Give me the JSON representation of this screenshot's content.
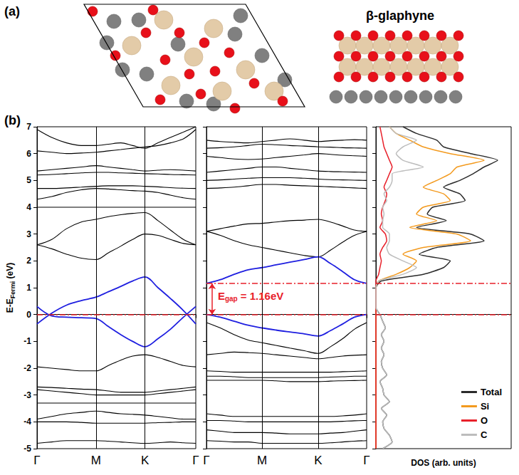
{
  "panel_labels": [
    "(a)",
    "(b)"
  ],
  "structure": {
    "title": "β-glaphyne"
  },
  "chart_data": [
    {
      "type": "line",
      "x": [
        0,
        0.25,
        0.5,
        0.75,
        1,
        1.21,
        1.42,
        1.62,
        1.83,
        2.05,
        2.26,
        2.48,
        2.69
      ],
      "xlim": [
        0,
        2.69
      ],
      "xticks": [
        {
          "value": 0,
          "label": "Γ"
        },
        {
          "value": 1,
          "label": "M"
        },
        {
          "value": 1.83,
          "label": "K"
        },
        {
          "value": 2.69,
          "label": "Γ"
        }
      ],
      "ylim": [
        -5,
        7
      ],
      "yticks": [
        -5,
        -4,
        -3,
        -2,
        -1,
        0,
        1,
        2,
        3,
        4,
        5,
        6,
        7
      ],
      "ylabel": {
        "main": "E-E",
        "sub": "Fermi",
        "rest": " (eV)"
      },
      "grid": true,
      "reference_lines": {
        "y": [
          0
        ],
        "color": "#e8202a",
        "line_style": "dashdot"
      },
      "series": [
        {
          "color": "#000000",
          "values": [
            2.6,
            2.8,
            3.2,
            3.45,
            3.55,
            3.65,
            3.72,
            3.77,
            3.8,
            3.5,
            3.15,
            2.8,
            2.6
          ]
        },
        {
          "color": "#000000",
          "values": [
            2.6,
            2.45,
            2.25,
            2.1,
            2.05,
            2.3,
            2.55,
            2.8,
            3.0,
            2.95,
            2.8,
            2.65,
            2.6
          ]
        },
        {
          "color": "#000000",
          "values": [
            4.0,
            4.0,
            4.0,
            4.0,
            4.0,
            4.0,
            4.0,
            4.0,
            4.0,
            4.0,
            4.0,
            4.0,
            4.0
          ]
        },
        {
          "color": "#000000",
          "values": [
            4.3,
            4.4,
            4.55,
            4.65,
            4.7,
            4.68,
            4.65,
            4.62,
            4.6,
            4.55,
            4.45,
            4.35,
            4.3
          ]
        },
        {
          "color": "#000000",
          "values": [
            4.7,
            4.7,
            4.72,
            4.75,
            4.78,
            4.8,
            4.8,
            4.8,
            4.78,
            4.76,
            4.73,
            4.71,
            4.7
          ]
        },
        {
          "color": "#000000",
          "values": [
            5.2,
            5.22,
            5.25,
            5.28,
            5.3,
            5.3,
            5.28,
            5.27,
            5.25,
            5.24,
            5.22,
            5.21,
            5.2
          ]
        },
        {
          "color": "#000000",
          "values": [
            5.35,
            5.4,
            5.45,
            5.5,
            5.55,
            5.5,
            5.45,
            5.4,
            5.35,
            5.38,
            5.4,
            5.38,
            5.35
          ]
        },
        {
          "color": "#000000",
          "values": [
            6.1,
            6.05,
            6.0,
            6.02,
            6.05,
            6.1,
            6.15,
            6.2,
            6.25,
            6.3,
            6.4,
            6.55,
            6.9
          ]
        },
        {
          "color": "#000000",
          "values": [
            6.9,
            6.6,
            6.4,
            6.3,
            6.3,
            6.35,
            6.4,
            6.3,
            6.2,
            6.4,
            6.6,
            6.8,
            7.0
          ]
        },
        {
          "color": "#000000",
          "values": [
            -1.95,
            -2.0,
            -2.05,
            -2.1,
            -2.1,
            -1.9,
            -1.7,
            -1.55,
            -1.5,
            -1.6,
            -1.75,
            -1.9,
            -1.95
          ]
        },
        {
          "color": "#000000",
          "values": [
            -2.7,
            -2.72,
            -2.75,
            -2.78,
            -2.8,
            -2.85,
            -2.9,
            -2.9,
            -2.9,
            -2.85,
            -2.8,
            -2.75,
            -2.7
          ]
        },
        {
          "color": "#000000",
          "values": [
            -2.8,
            -2.85,
            -2.9,
            -2.95,
            -3.0,
            -3.0,
            -3.0,
            -3.0,
            -3.0,
            -2.95,
            -2.9,
            -2.85,
            -2.8
          ]
        },
        {
          "color": "#000000",
          "values": [
            -3.3,
            -3.3,
            -3.3,
            -3.3,
            -3.3,
            -3.3,
            -3.3,
            -3.3,
            -3.3,
            -3.3,
            -3.3,
            -3.3,
            -3.3
          ]
        },
        {
          "color": "#000000",
          "values": [
            -3.9,
            -3.8,
            -3.7,
            -3.65,
            -3.6,
            -3.65,
            -3.7,
            -3.72,
            -3.75,
            -3.8,
            -3.85,
            -3.9,
            -3.9
          ]
        },
        {
          "color": "#000000",
          "values": [
            -4.0,
            -4.0,
            -4.0,
            -4.02,
            -4.05,
            -4.05,
            -4.05,
            -4.05,
            -4.05,
            -4.03,
            -4.02,
            -4.0,
            -4.0
          ]
        },
        {
          "color": "#000000",
          "values": [
            -4.8,
            -4.75,
            -4.7,
            -4.7,
            -4.7,
            -4.72,
            -4.75,
            -4.78,
            -4.8,
            -4.78,
            -4.75,
            -4.78,
            -4.8
          ]
        },
        {
          "color": "#1f1fe0",
          "values": [
            -0.35,
            0.05,
            0.35,
            0.52,
            0.65,
            0.85,
            1.05,
            1.25,
            1.4,
            1.0,
            0.6,
            0.15,
            -0.35
          ]
        },
        {
          "color": "#1f1fe0",
          "values": [
            0.3,
            -0.05,
            -0.1,
            -0.12,
            -0.15,
            -0.45,
            -0.75,
            -1.0,
            -1.2,
            -0.9,
            -0.55,
            -0.1,
            0.3
          ]
        }
      ]
    },
    {
      "type": "line",
      "x": [
        0,
        0.25,
        0.5,
        0.75,
        1,
        1.25,
        1.5,
        1.76,
        2.01,
        2.23,
        2.45,
        2.66,
        2.88
      ],
      "xlim": [
        0,
        2.88
      ],
      "xticks": [
        {
          "value": 0,
          "label": "Γ"
        },
        {
          "value": 1,
          "label": "M"
        },
        {
          "value": 2.01,
          "label": "K"
        },
        {
          "value": 2.88,
          "label": "Γ"
        }
      ],
      "ylim": [
        -5,
        7
      ],
      "yticks": [
        -5,
        -4,
        -3,
        -2,
        -1,
        0,
        1,
        2,
        3,
        4,
        5,
        6,
        7
      ],
      "tick_labels": "x",
      "grid": true,
      "reference_lines": {
        "y": [
          0,
          1.16
        ],
        "color": "#e8202a",
        "line_style": "dashdot"
      },
      "annotation": {
        "main": "E",
        "sub": "gap",
        "rest": " = 1.16eV",
        "y_from": 0,
        "y_to": 1.16,
        "color": "#e8202a"
      },
      "series": [
        {
          "color": "#000000",
          "values": [
            3.1,
            3.2,
            3.3,
            3.38,
            3.4,
            3.45,
            3.5,
            3.52,
            3.55,
            3.45,
            3.3,
            3.15,
            3.1
          ]
        },
        {
          "color": "#000000",
          "values": [
            3.1,
            2.95,
            2.75,
            2.6,
            2.5,
            2.4,
            2.3,
            2.2,
            2.15,
            2.4,
            2.7,
            2.95,
            3.1
          ]
        },
        {
          "color": "#000000",
          "values": [
            4.7,
            4.72,
            4.75,
            4.8,
            4.85,
            4.85,
            4.82,
            4.8,
            4.78,
            4.76,
            4.74,
            4.72,
            4.7
          ]
        },
        {
          "color": "#000000",
          "values": [
            5.0,
            5.02,
            5.05,
            5.08,
            5.1,
            5.1,
            5.1,
            5.08,
            5.05,
            5.03,
            5.02,
            5.01,
            5.0
          ]
        },
        {
          "color": "#000000",
          "values": [
            5.3,
            5.35,
            5.4,
            5.45,
            5.5,
            5.5,
            5.45,
            5.4,
            5.35,
            5.33,
            5.32,
            5.31,
            5.3
          ]
        },
        {
          "color": "#000000",
          "values": [
            5.9,
            5.85,
            5.8,
            5.78,
            5.8,
            5.85,
            5.9,
            5.95,
            6.0,
            5.97,
            5.94,
            5.92,
            5.9
          ]
        },
        {
          "color": "#000000",
          "values": [
            6.2,
            6.22,
            6.25,
            6.3,
            6.35,
            6.33,
            6.3,
            6.28,
            6.25,
            6.24,
            6.22,
            6.21,
            6.2
          ]
        },
        {
          "color": "#000000",
          "values": [
            6.5,
            6.45,
            6.42,
            6.4,
            6.45,
            6.5,
            6.55,
            6.5,
            6.45,
            6.48,
            6.5,
            6.52,
            6.5
          ]
        },
        {
          "color": "#000000",
          "values": [
            -0.3,
            -0.5,
            -0.75,
            -0.95,
            -1.05,
            -1.15,
            -1.25,
            -1.35,
            -1.45,
            -1.2,
            -0.9,
            -0.55,
            -0.3
          ]
        },
        {
          "color": "#000000",
          "values": [
            -1.5,
            -1.45,
            -1.4,
            -1.42,
            -1.45,
            -1.5,
            -1.55,
            -1.6,
            -1.65,
            -1.6,
            -1.55,
            -1.52,
            -1.5
          ]
        },
        {
          "color": "#000000",
          "values": [
            -2.1,
            -2.12,
            -2.15,
            -2.15,
            -2.15,
            -2.15,
            -2.15,
            -2.15,
            -2.15,
            -2.15,
            -2.13,
            -2.12,
            -2.1
          ]
        },
        {
          "color": "#000000",
          "values": [
            -2.3,
            -2.3,
            -2.32,
            -2.35,
            -2.35,
            -2.35,
            -2.35,
            -2.35,
            -2.35,
            -2.33,
            -2.32,
            -2.3,
            -2.3
          ]
        },
        {
          "color": "#000000",
          "values": [
            -2.45,
            -2.45,
            -2.45,
            -2.45,
            -2.45,
            -2.47,
            -2.5,
            -2.5,
            -2.5,
            -2.48,
            -2.47,
            -2.46,
            -2.45
          ]
        },
        {
          "color": "#000000",
          "values": [
            -3.7,
            -3.75,
            -3.8,
            -3.8,
            -3.8,
            -3.8,
            -3.8,
            -3.8,
            -3.8,
            -3.8,
            -3.78,
            -3.75,
            -3.7
          ]
        },
        {
          "color": "#000000",
          "values": [
            -3.95,
            -3.95,
            -3.97,
            -4.0,
            -4.0,
            -4.0,
            -4.0,
            -4.0,
            -4.0,
            -4.0,
            -3.98,
            -3.96,
            -3.95
          ]
        },
        {
          "color": "#000000",
          "values": [
            -4.3,
            -4.35,
            -4.4,
            -4.4,
            -4.4,
            -4.42,
            -4.45,
            -4.45,
            -4.45,
            -4.42,
            -4.4,
            -4.35,
            -4.3
          ]
        },
        {
          "color": "#000000",
          "values": [
            -4.7,
            -4.72,
            -4.75,
            -4.75,
            -4.8,
            -4.8,
            -4.8,
            -4.8,
            -4.8,
            -4.78,
            -4.75,
            -4.72,
            -4.7
          ]
        },
        {
          "color": "#1f1fe0",
          "values": [
            1.16,
            1.3,
            1.5,
            1.67,
            1.75,
            1.85,
            1.95,
            2.05,
            2.15,
            1.9,
            1.6,
            1.3,
            1.16
          ]
        },
        {
          "color": "#1f1fe0",
          "values": [
            0,
            -0.1,
            -0.25,
            -0.4,
            -0.5,
            -0.58,
            -0.65,
            -0.72,
            -0.8,
            -0.6,
            -0.35,
            -0.1,
            0
          ]
        }
      ]
    },
    {
      "type": "line",
      "y": [
        -5,
        -4.75,
        -4.5,
        -4.25,
        -4,
        -3.75,
        -3.5,
        -3.25,
        -3,
        -2.75,
        -2.5,
        -2.25,
        -2,
        -1.75,
        -1.5,
        -1.25,
        -1,
        -0.75,
        -0.5,
        -0.25,
        0,
        0.25,
        0.5,
        0.75,
        1,
        1.25,
        1.5,
        1.75,
        2,
        2.25,
        2.5,
        2.75,
        3,
        3.25,
        3.5,
        3.75,
        4,
        4.25,
        4.5,
        4.75,
        5,
        5.25,
        5.5,
        5.75,
        6,
        6.25,
        6.5,
        6.75,
        7
      ],
      "ylim": [
        -5,
        7
      ],
      "yticks": [
        -5,
        -4,
        -3,
        -2,
        -1,
        0,
        1,
        2,
        3,
        4,
        5,
        6,
        7
      ],
      "xlim": [
        0,
        1
      ],
      "xlabel": "DOS (arb. units)",
      "tick_labels": false,
      "legend": "lower right",
      "reference_lines": {
        "y": [
          0,
          1.16
        ],
        "color": "#e8202a",
        "line_style": "dashdot"
      },
      "series": [
        {
          "name": "Total",
          "color": "#2b2b2b",
          "values": [
            0.05,
            0.12,
            0.1,
            0.06,
            0.05,
            0.08,
            0.04,
            0.1,
            0.06,
            0.05,
            0.03,
            0.08,
            0.05,
            0.04,
            0.06,
            0.04,
            0.06,
            0.04,
            0.07,
            0.05,
            0.03,
            0,
            0,
            0,
            0,
            0.04,
            0.35,
            0.5,
            0.55,
            0.32,
            0.45,
            0.8,
            0.7,
            0.3,
            0.52,
            0.38,
            0.42,
            0.66,
            0.62,
            0.5,
            0.62,
            0.72,
            0.8,
            0.9,
            0.7,
            0.5,
            0.45,
            0.3,
            0.2
          ]
        },
        {
          "name": "Si",
          "color": "#f39a1e",
          "values": [
            0,
            0,
            0,
            0,
            0,
            0,
            0,
            0,
            0,
            0,
            0,
            0,
            0,
            0,
            0,
            0,
            0,
            0,
            0,
            0,
            0,
            0,
            0,
            0,
            0,
            0.02,
            0.15,
            0.25,
            0.3,
            0.2,
            0.35,
            0.7,
            0.6,
            0.25,
            0.45,
            0.3,
            0.35,
            0.55,
            0.5,
            0.35,
            0.45,
            0.55,
            0.6,
            0.8,
            0.55,
            0.35,
            0.25,
            0.15,
            0.1
          ]
        },
        {
          "name": "O",
          "color": "#e8202a",
          "values": [
            0,
            0,
            0,
            0,
            0,
            0,
            0,
            0,
            0,
            0,
            0,
            0,
            0,
            0,
            0,
            0,
            0,
            0,
            0,
            0,
            0,
            0,
            0,
            0,
            0,
            0,
            0.02,
            0.03,
            0.04,
            0.03,
            0.05,
            0.08,
            0.07,
            0.03,
            0.05,
            0.04,
            0.05,
            0.07,
            0.08,
            0.06,
            0.08,
            0.1,
            0.12,
            0.1,
            0.08,
            0.06,
            0.05,
            0.04,
            0.03
          ]
        },
        {
          "name": "C",
          "color": "#bdbdbd",
          "values": [
            0.05,
            0.12,
            0.1,
            0.06,
            0.05,
            0.08,
            0.04,
            0.1,
            0.06,
            0.05,
            0.03,
            0.08,
            0.05,
            0.04,
            0.06,
            0.04,
            0.06,
            0.04,
            0.07,
            0.05,
            0.03,
            0,
            0,
            0,
            0,
            0.02,
            0.2,
            0.3,
            0.2,
            0.1,
            0.08,
            0.1,
            0.1,
            0.05,
            0.05,
            0.06,
            0.05,
            0.08,
            0.06,
            0.1,
            0.12,
            0.12,
            0.35,
            0.2,
            0.15,
            0.2,
            0.3,
            0.15,
            0.1
          ]
        }
      ]
    }
  ]
}
